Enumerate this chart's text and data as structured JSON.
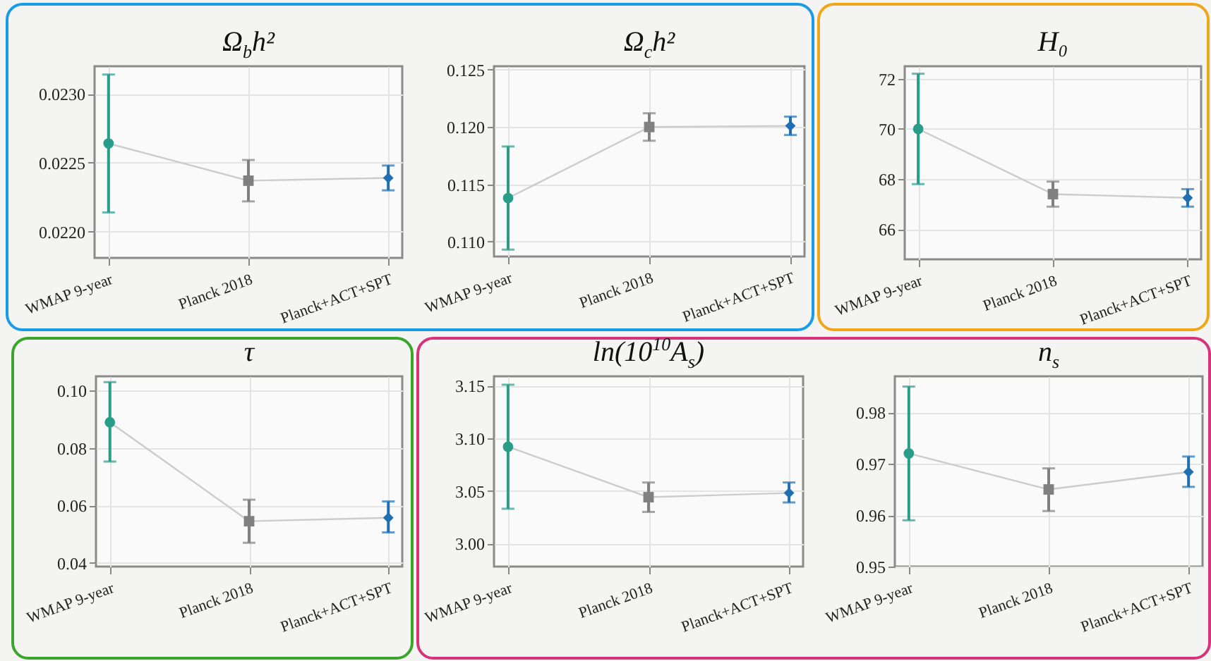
{
  "chart_data": [
    {
      "type": "scatter",
      "title": "Ω$_{b}$h²",
      "categories": [
        "WMAP 9-year",
        "Planck 2018",
        "Planck+ACT+SPT"
      ],
      "ylim": [
        0.02181,
        0.0232
      ],
      "yticks": [
        {
          "value": 0.022,
          "label": "0.0220"
        },
        0.0225,
        {
          "value": 0.023,
          "label": "0.0230"
        }
      ],
      "grid": true,
      "series": [
        {
          "type": "line",
          "color": "#cccccc",
          "marker": "none",
          "values": [
            0.02264,
            0.02237,
            0.02239
          ]
        },
        {
          "color": "#2a9d8a",
          "marker": "circle",
          "values": [
            0.02264,
            null,
            null
          ],
          "errors": [
            [
              0.02214,
              0.02314
            ],
            null,
            null
          ]
        },
        {
          "color": "#808080",
          "marker": "square",
          "values": [
            null,
            0.02237,
            null
          ],
          "errors": [
            null,
            [
              0.02222,
              0.02252
            ],
            null
          ]
        },
        {
          "color": "#1f6fb2",
          "marker": "diamond",
          "values": [
            null,
            null,
            0.02239
          ],
          "errors": [
            null,
            null,
            [
              0.0223,
              0.02248
            ]
          ]
        }
      ]
    },
    {
      "type": "scatter",
      "title": "Ω$_{c}$h²",
      "categories": [
        "WMAP 9-year",
        "Planck 2018",
        "Planck+ACT+SPT"
      ],
      "ylim": [
        0.1087,
        0.1253
      ],
      "yticks": [
        {
          "value": 0.11,
          "label": "0.110"
        },
        0.115,
        {
          "value": 0.12,
          "label": "0.120"
        },
        0.125
      ],
      "grid": true,
      "series": [
        {
          "type": "line",
          "color": "#cccccc",
          "marker": "none",
          "values": [
            0.1138,
            0.12,
            0.1201
          ]
        },
        {
          "color": "#2a9d8a",
          "marker": "circle",
          "values": [
            0.1138,
            null,
            null
          ],
          "errors": [
            [
              0.1093,
              0.1183
            ],
            null,
            null
          ]
        },
        {
          "color": "#808080",
          "marker": "square",
          "values": [
            null,
            0.12,
            null
          ],
          "errors": [
            null,
            [
              0.1188,
              0.1212
            ],
            null
          ]
        },
        {
          "color": "#1f6fb2",
          "marker": "diamond",
          "values": [
            null,
            null,
            0.1201
          ],
          "errors": [
            null,
            null,
            [
              0.1193,
              0.1209
            ]
          ]
        }
      ]
    },
    {
      "type": "scatter",
      "title": "H₀",
      "categories": [
        "WMAP 9-year",
        "Planck 2018",
        "Planck+ACT+SPT"
      ],
      "ylim": [
        64.8,
        72.5
      ],
      "yticks": [
        66,
        68,
        70,
        72
      ],
      "grid": true,
      "series": [
        {
          "type": "line",
          "color": "#cccccc",
          "marker": "none",
          "values": [
            70.0,
            67.4,
            67.25
          ]
        },
        {
          "color": "#2a9d8a",
          "marker": "circle",
          "values": [
            70.0,
            null,
            null
          ],
          "errors": [
            [
              67.8,
              72.2
            ],
            null,
            null
          ]
        },
        {
          "color": "#808080",
          "marker": "square",
          "values": [
            null,
            67.4,
            null
          ],
          "errors": [
            null,
            [
              66.9,
              67.9
            ],
            null
          ]
        },
        {
          "color": "#1f6fb2",
          "marker": "diamond",
          "values": [
            null,
            null,
            67.25
          ],
          "errors": [
            null,
            null,
            [
              66.9,
              67.6
            ]
          ]
        }
      ]
    },
    {
      "type": "scatter",
      "title": "τ",
      "categories": [
        "WMAP 9-year",
        "Planck 2018",
        "Planck+ACT+SPT"
      ],
      "ylim": [
        0.0387,
        0.105
      ],
      "yticks": [
        0.04,
        0.06,
        0.08,
        {
          "value": 0.1,
          "label": "0.10"
        }
      ],
      "grid": true,
      "series": [
        {
          "type": "line",
          "color": "#cccccc",
          "marker": "none",
          "values": [
            0.089,
            0.0545,
            0.0557
          ]
        },
        {
          "color": "#2a9d8a",
          "marker": "circle",
          "values": [
            0.089,
            null,
            null
          ],
          "errors": [
            [
              0.0753,
              0.103
            ],
            null,
            null
          ]
        },
        {
          "color": "#808080",
          "marker": "square",
          "values": [
            null,
            0.0545,
            null
          ],
          "errors": [
            null,
            [
              0.047,
              0.062
            ],
            null
          ]
        },
        {
          "color": "#1f6fb2",
          "marker": "diamond",
          "values": [
            null,
            null,
            0.0557
          ],
          "errors": [
            null,
            null,
            [
              0.0506,
              0.0614
            ]
          ]
        }
      ]
    },
    {
      "type": "scatter",
      "title": "ln(10$^{10}$A$_{s}$)",
      "categories": [
        "WMAP 9-year",
        "Planck 2018",
        "Planck+ACT+SPT"
      ],
      "ylim": [
        2.978,
        3.159
      ],
      "yticks": [
        {
          "value": 3,
          "label": "3.00"
        },
        3.05,
        {
          "value": 3.1,
          "label": "3.10"
        },
        3.15
      ],
      "grid": true,
      "series": [
        {
          "type": "line",
          "color": "#cccccc",
          "marker": "none",
          "values": [
            3.092,
            3.044,
            3.048
          ]
        },
        {
          "color": "#2a9d8a",
          "marker": "circle",
          "values": [
            3.092,
            null,
            null
          ],
          "errors": [
            [
              3.033,
              3.151
            ],
            null,
            null
          ]
        },
        {
          "color": "#808080",
          "marker": "square",
          "values": [
            null,
            3.044,
            null
          ],
          "errors": [
            null,
            [
              3.03,
              3.058
            ],
            null
          ]
        },
        {
          "color": "#1f6fb2",
          "marker": "diamond",
          "values": [
            null,
            null,
            3.048
          ],
          "errors": [
            null,
            null,
            [
              3.039,
              3.058
            ]
          ]
        }
      ]
    },
    {
      "type": "scatter",
      "title": "n$_{s}$",
      "categories": [
        "WMAP 9-year",
        "Planck 2018",
        "Planck+ACT+SPT"
      ],
      "ylim": [
        0.95,
        0.987
      ],
      "yticks": [
        0.95,
        0.96,
        0.97,
        0.98
      ],
      "grid": true,
      "series": [
        {
          "type": "line",
          "color": "#cccccc",
          "marker": "none",
          "values": [
            0.972,
            0.965,
            0.9684
          ]
        },
        {
          "color": "#2a9d8a",
          "marker": "circle",
          "values": [
            0.972,
            null,
            null
          ],
          "errors": [
            [
              0.959,
              0.985
            ],
            null,
            null
          ]
        },
        {
          "color": "#808080",
          "marker": "square",
          "values": [
            null,
            0.965,
            null
          ],
          "errors": [
            null,
            [
              0.9608,
              0.9691
            ],
            null
          ]
        },
        {
          "color": "#1f6fb2",
          "marker": "diamond",
          "values": [
            null,
            null,
            0.9684
          ],
          "errors": [
            null,
            null,
            [
              0.9655,
              0.9714
            ]
          ]
        }
      ]
    }
  ]
}
